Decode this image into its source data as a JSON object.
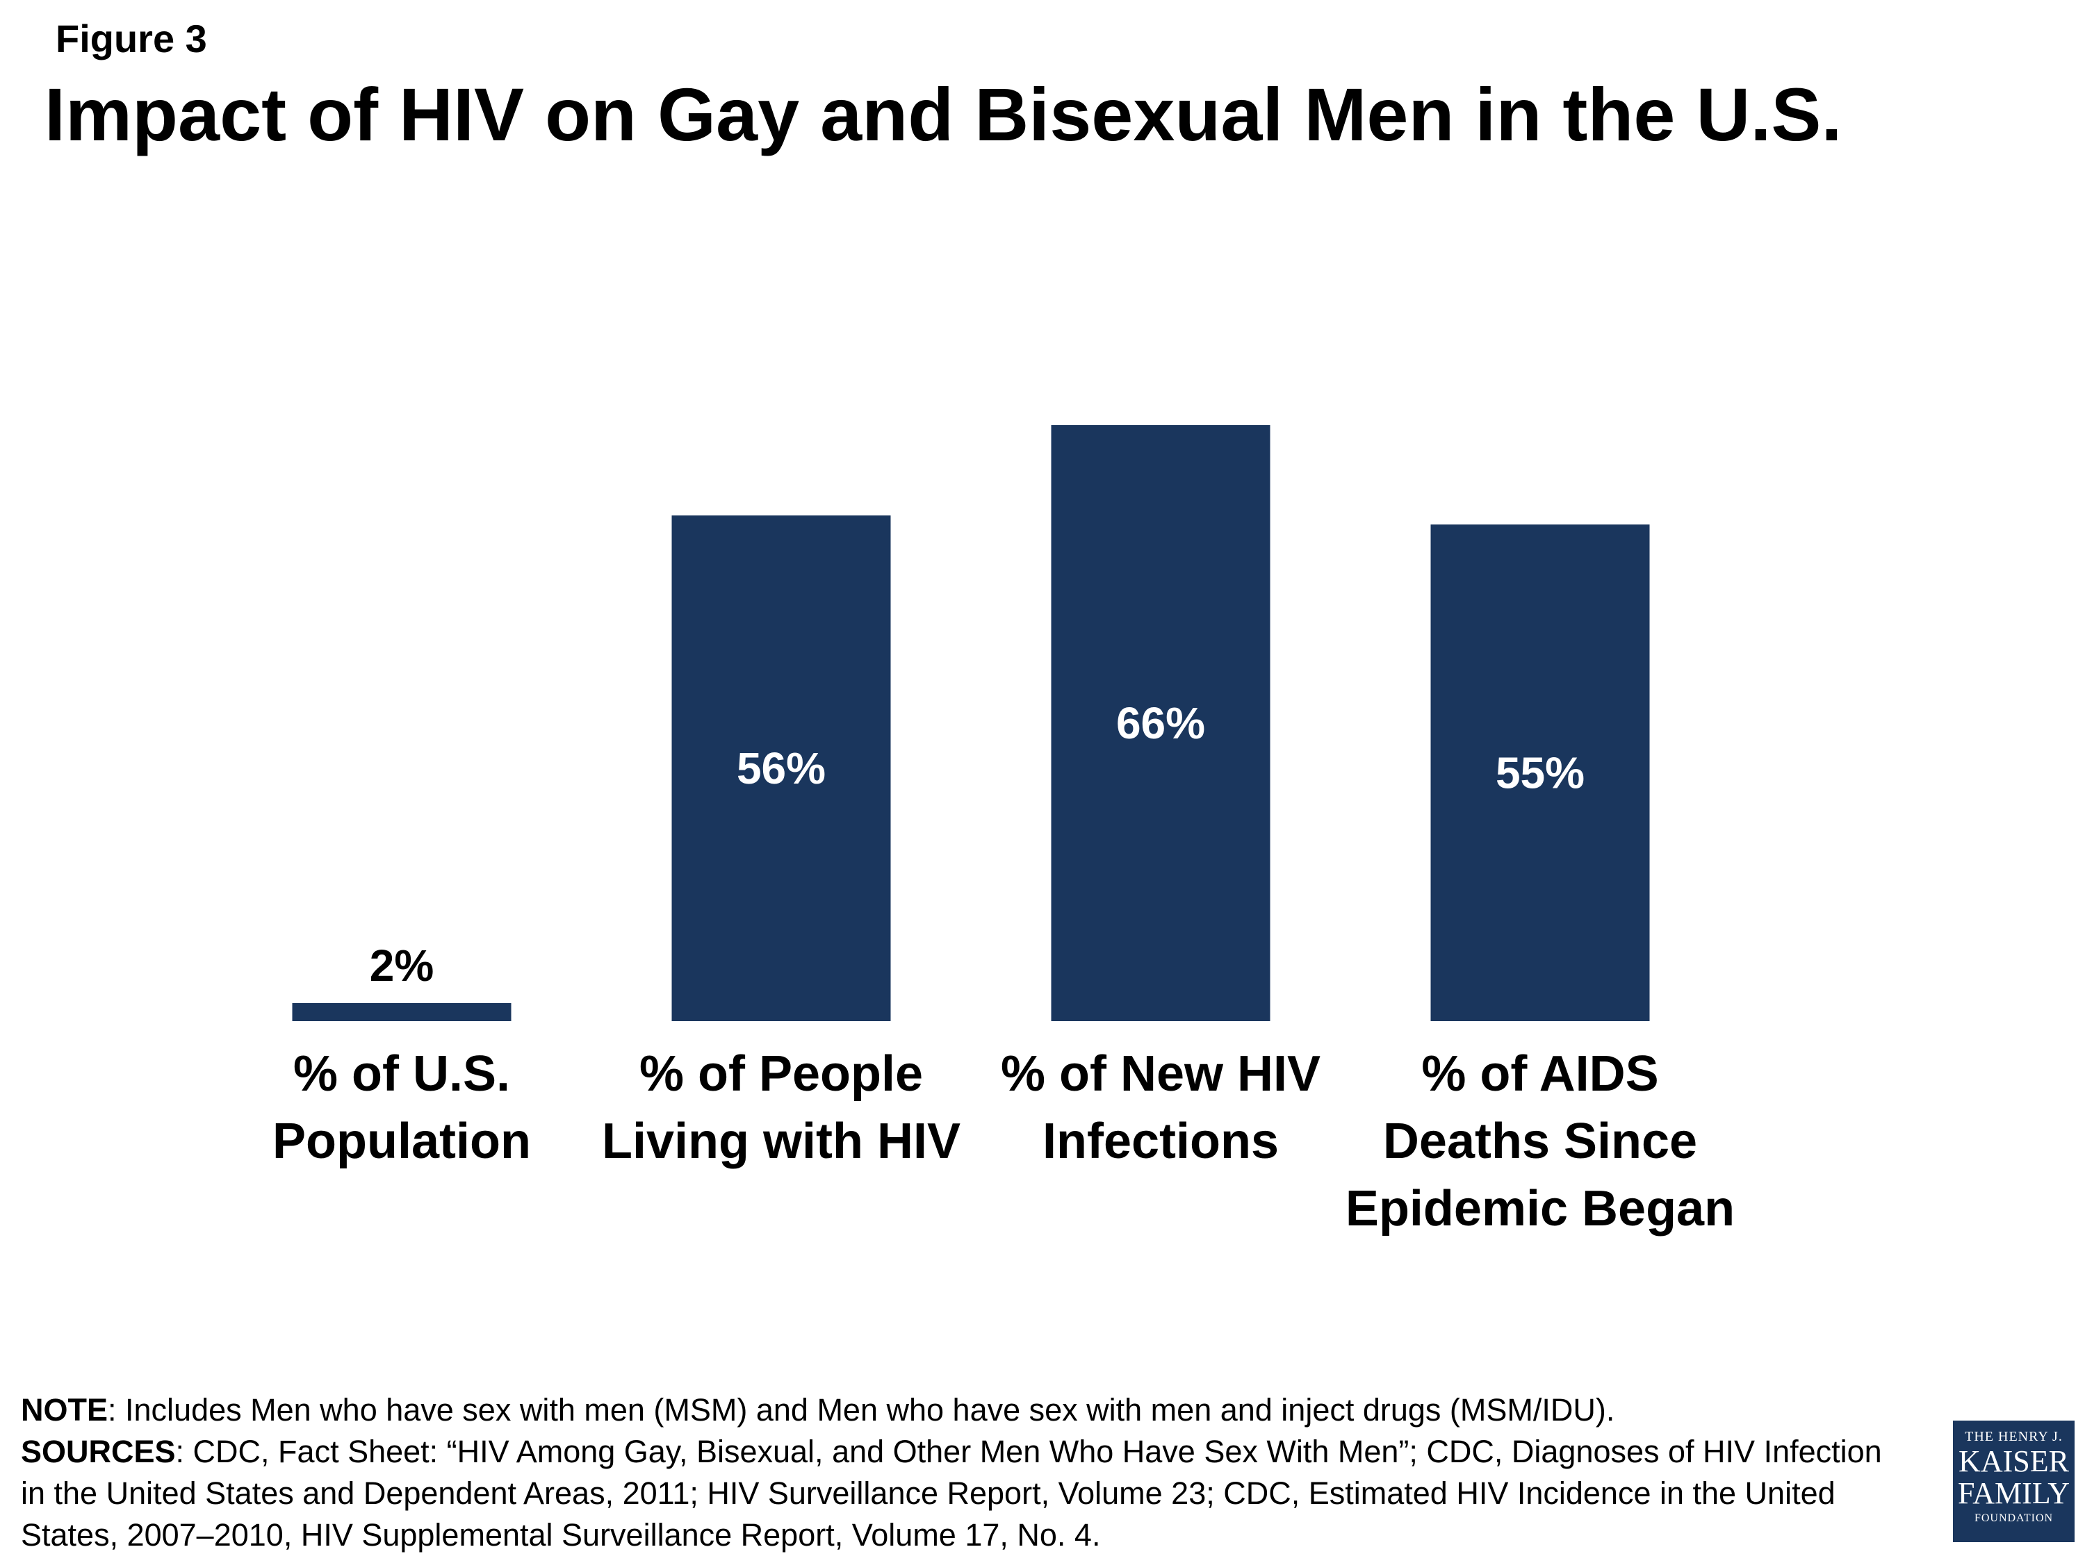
{
  "figure_label": "Figure 3",
  "title": "Impact of HIV on Gay and Bisexual Men in the U.S.",
  "chart_data": {
    "type": "bar",
    "categories": [
      [
        "% of U.S.",
        "Population"
      ],
      [
        "% of People",
        "Living with HIV"
      ],
      [
        "% of New HIV",
        "Infections"
      ],
      [
        "% of AIDS",
        "Deaths Since",
        "Epidemic Began"
      ]
    ],
    "values": [
      2,
      56,
      66,
      55
    ],
    "data_labels": [
      "2%",
      "56%",
      "66%",
      "55%"
    ],
    "bar_color": "#1a365d",
    "ylim": [
      0,
      100
    ],
    "grid": false,
    "legend": "none"
  },
  "notes": {
    "note_label": "NOTE",
    "note_text": ": Includes Men who have sex with men (MSM) and Men who have sex with men and inject drugs (MSM/IDU).",
    "sources_label": "SOURCES",
    "sources_text": ": CDC, Fact Sheet: “HIV Among Gay, Bisexual, and Other Men Who Have Sex With Men”; CDC, Diagnoses of HIV Infection in the United States and Dependent Areas, 2011; HIV Surveillance Report, Volume 23; CDC, Estimated HIV Incidence in the United States, 2007–2010, HIV Supplemental Surveillance Report, Volume 17, No. 4."
  },
  "logo": {
    "line1": "THE HENRY J.",
    "line2": "KAISER",
    "line3": "FAMILY",
    "line4": "FOUNDATION"
  }
}
